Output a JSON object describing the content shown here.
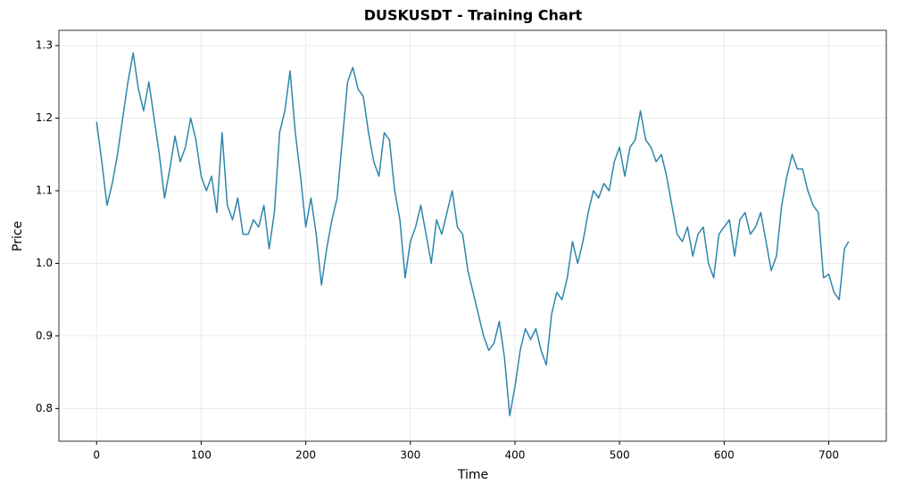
{
  "chart_data": {
    "type": "line",
    "title": "DUSKUSDT - Training Chart",
    "x_label": "Time",
    "y_label": "Price",
    "x": [
      0,
      5,
      10,
      15,
      20,
      25,
      30,
      35,
      40,
      45,
      50,
      55,
      60,
      65,
      70,
      75,
      80,
      85,
      90,
      95,
      100,
      105,
      110,
      115,
      120,
      125,
      130,
      135,
      140,
      145,
      150,
      155,
      160,
      165,
      170,
      175,
      180,
      185,
      190,
      195,
      200,
      205,
      210,
      215,
      220,
      225,
      230,
      235,
      240,
      245,
      250,
      255,
      260,
      265,
      270,
      275,
      280,
      285,
      290,
      295,
      300,
      305,
      310,
      315,
      320,
      325,
      330,
      335,
      340,
      345,
      350,
      355,
      360,
      365,
      370,
      375,
      380,
      385,
      390,
      395,
      400,
      405,
      410,
      415,
      420,
      425,
      430,
      435,
      440,
      445,
      450,
      455,
      460,
      465,
      470,
      475,
      480,
      485,
      490,
      495,
      500,
      505,
      510,
      515,
      520,
      525,
      530,
      535,
      540,
      545,
      550,
      555,
      560,
      565,
      570,
      575,
      580,
      585,
      590,
      595,
      600,
      605,
      610,
      615,
      620,
      625,
      630,
      635,
      640,
      645,
      650,
      655,
      660,
      665,
      670,
      675,
      680,
      685,
      690,
      695,
      700,
      705,
      710,
      715,
      719
    ],
    "series": [
      {
        "name": "Price",
        "color": "#2e86ab",
        "values": [
          1.195,
          1.14,
          1.08,
          1.11,
          1.15,
          1.2,
          1.25,
          1.29,
          1.24,
          1.21,
          1.25,
          1.2,
          1.15,
          1.09,
          1.13,
          1.175,
          1.14,
          1.16,
          1.2,
          1.17,
          1.12,
          1.1,
          1.12,
          1.07,
          1.18,
          1.08,
          1.06,
          1.09,
          1.04,
          1.04,
          1.06,
          1.05,
          1.08,
          1.02,
          1.07,
          1.18,
          1.21,
          1.265,
          1.18,
          1.12,
          1.05,
          1.09,
          1.04,
          0.97,
          1.02,
          1.06,
          1.09,
          1.17,
          1.25,
          1.27,
          1.24,
          1.23,
          1.18,
          1.14,
          1.12,
          1.18,
          1.17,
          1.1,
          1.06,
          0.98,
          1.03,
          1.05,
          1.08,
          1.04,
          1.0,
          1.06,
          1.04,
          1.07,
          1.1,
          1.05,
          1.04,
          0.99,
          0.96,
          0.93,
          0.9,
          0.88,
          0.89,
          0.92,
          0.87,
          0.79,
          0.83,
          0.88,
          0.91,
          0.895,
          0.91,
          0.88,
          0.86,
          0.93,
          0.96,
          0.95,
          0.98,
          1.03,
          1.0,
          1.03,
          1.07,
          1.1,
          1.09,
          1.11,
          1.1,
          1.14,
          1.16,
          1.12,
          1.16,
          1.17,
          1.21,
          1.17,
          1.16,
          1.14,
          1.15,
          1.12,
          1.08,
          1.04,
          1.03,
          1.05,
          1.01,
          1.04,
          1.05,
          1.0,
          0.98,
          1.04,
          1.05,
          1.06,
          1.01,
          1.06,
          1.07,
          1.04,
          1.05,
          1.07,
          1.03,
          0.99,
          1.01,
          1.08,
          1.12,
          1.15,
          1.13,
          1.13,
          1.1,
          1.08,
          1.07,
          0.98,
          0.985,
          0.96,
          0.95,
          1.02,
          1.03
        ]
      }
    ],
    "xlim": [
      -36,
      755
    ],
    "xticks": [
      0,
      100,
      200,
      300,
      400,
      500,
      600,
      700
    ],
    "ylim": [
      0.755,
      1.321
    ],
    "yticks": [
      0.8,
      0.9,
      {
        "value": 1,
        "label": "1.0"
      },
      1.1,
      1.2,
      1.3
    ],
    "grid": true
  }
}
